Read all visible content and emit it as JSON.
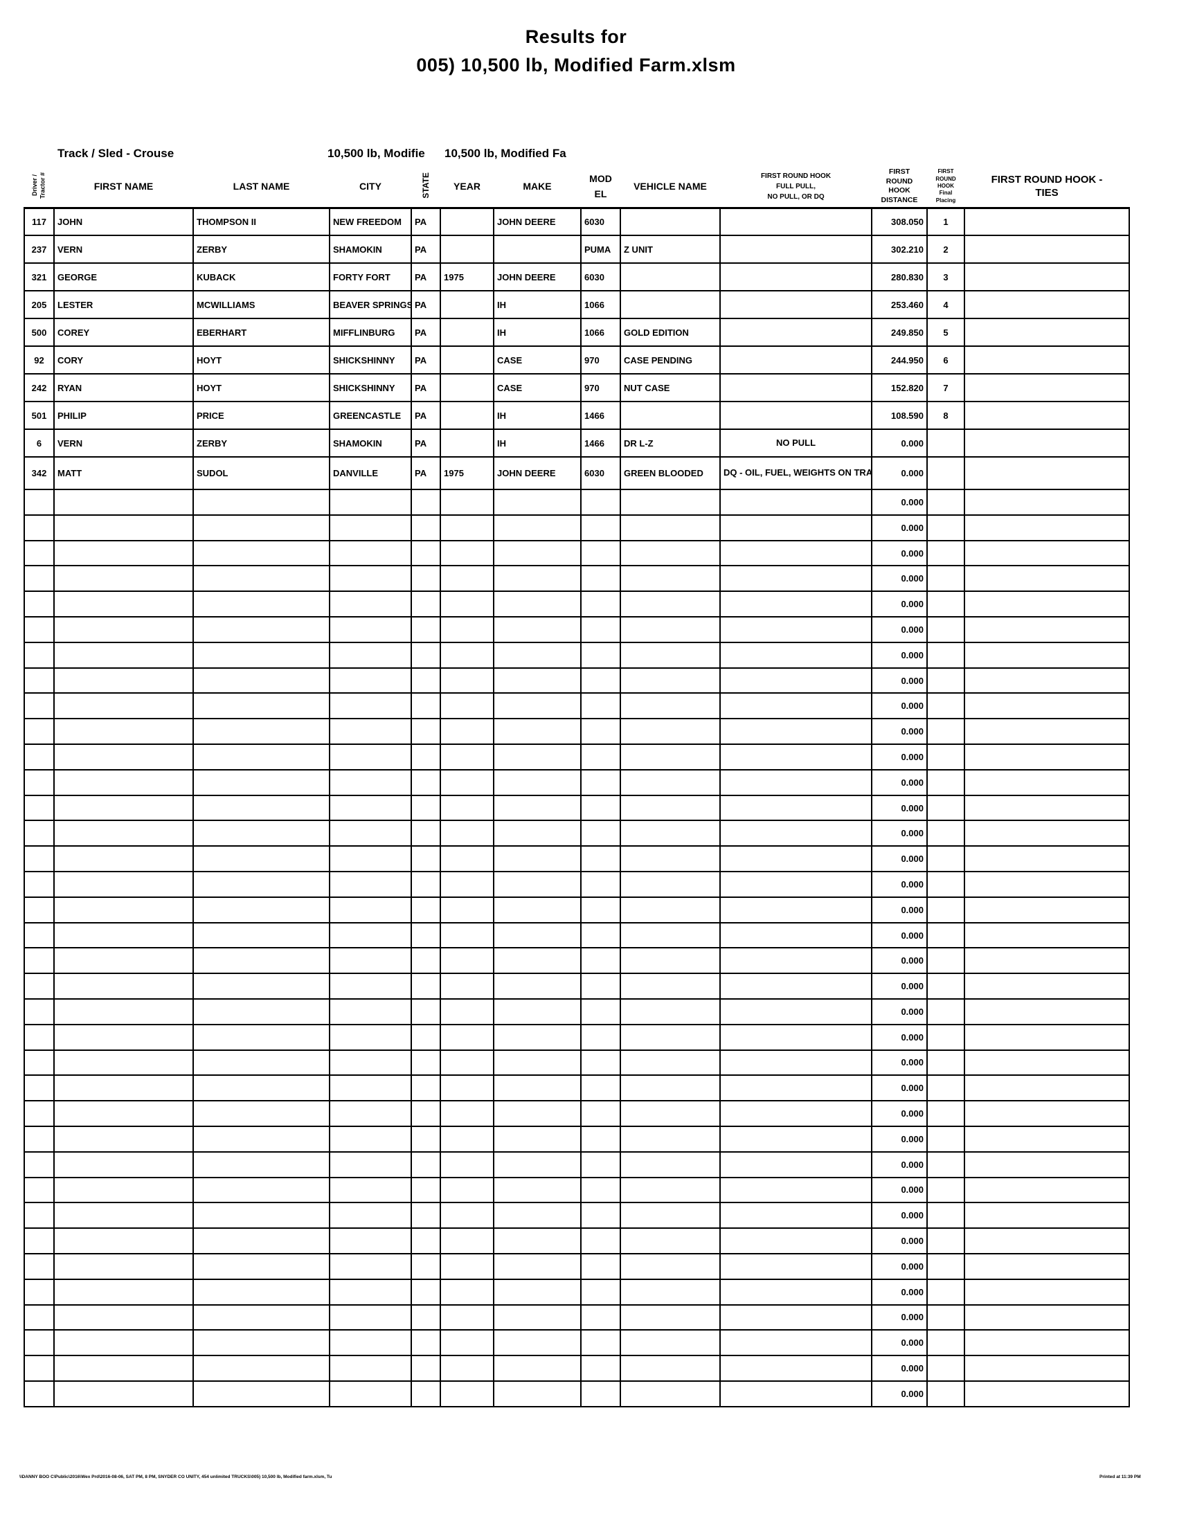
{
  "page": {
    "title_line1": "Results for",
    "title_line2": "005) 10,500 lb, Modified Farm.xlsm"
  },
  "meta": {
    "track_label": "Track / Sled - Crouse",
    "class_left": "10,500 lb, Modifie",
    "class_right": "10,500 lb, Modified Fa"
  },
  "table": {
    "headers": {
      "driver_tractor": "Driver /\nTractor #",
      "first_name": "FIRST NAME",
      "last_name": "LAST NAME",
      "city": "CITY",
      "state": "STATE",
      "year": "YEAR",
      "make": "MAKE",
      "model": "MOD EL",
      "vehicle_name": "VEHICLE NAME",
      "first_round_result": "FIRST ROUND HOOK\nFULL PULL,\nNO PULL, OR DQ",
      "first_round_distance": "FIRST\nROUND\nHOOK\nDISTANCE",
      "first_round_placing": "FIRST\nROUND\nHOOK\nFinal\nPlacing",
      "first_round_ties": "FIRST ROUND HOOK -\nTIES"
    },
    "rows": [
      {
        "num": "117",
        "first": "JOHN",
        "last": "THOMPSON II",
        "city": "NEW FREEDOM",
        "state": "PA",
        "year": "",
        "make": "JOHN DEERE",
        "model": "6030",
        "vehicle": "",
        "result": "",
        "distance": "308.050",
        "placing": "1",
        "ties": ""
      },
      {
        "num": "237",
        "first": "VERN",
        "last": "ZERBY",
        "city": "SHAMOKIN",
        "state": "PA",
        "year": "",
        "make": "",
        "model": "PUMA",
        "vehicle": "Z UNIT",
        "result": "",
        "distance": "302.210",
        "placing": "2",
        "ties": ""
      },
      {
        "num": "321",
        "first": "GEORGE",
        "last": "KUBACK",
        "city": "FORTY FORT",
        "state": "PA",
        "year": "1975",
        "make": "JOHN DEERE",
        "model": "6030",
        "vehicle": "",
        "result": "",
        "distance": "280.830",
        "placing": "3",
        "ties": ""
      },
      {
        "num": "205",
        "first": "LESTER",
        "last": "MCWILLIAMS",
        "city": "BEAVER SPRINGS",
        "state": "PA",
        "year": "",
        "make": "IH",
        "model": "1066",
        "vehicle": "",
        "result": "",
        "distance": "253.460",
        "placing": "4",
        "ties": ""
      },
      {
        "num": "500",
        "first": "COREY",
        "last": "EBERHART",
        "city": "MIFFLINBURG",
        "state": "PA",
        "year": "",
        "make": "IH",
        "model": "1066",
        "vehicle": "GOLD EDITION",
        "result": "",
        "distance": "249.850",
        "placing": "5",
        "ties": ""
      },
      {
        "num": "92",
        "first": "CORY",
        "last": "HOYT",
        "city": "SHICKSHINNY",
        "state": "PA",
        "year": "",
        "make": "CASE",
        "model": "970",
        "vehicle": "CASE PENDING",
        "result": "",
        "distance": "244.950",
        "placing": "6",
        "ties": ""
      },
      {
        "num": "242",
        "first": "RYAN",
        "last": "HOYT",
        "city": "SHICKSHINNY",
        "state": "PA",
        "year": "",
        "make": "CASE",
        "model": "970",
        "vehicle": "NUT CASE",
        "result": "",
        "distance": "152.820",
        "placing": "7",
        "ties": ""
      },
      {
        "num": "501",
        "first": "PHILIP",
        "last": "PRICE",
        "city": "GREENCASTLE",
        "state": "PA",
        "year": "",
        "make": "IH",
        "model": "1466",
        "vehicle": "",
        "result": "",
        "distance": "108.590",
        "placing": "8",
        "ties": ""
      },
      {
        "num": "6",
        "first": "VERN",
        "last": "ZERBY",
        "city": "SHAMOKIN",
        "state": "PA",
        "year": "",
        "make": "IH",
        "model": "1466",
        "vehicle": "DR L-Z",
        "result": "NO PULL",
        "distance": "0.000",
        "placing": "",
        "ties": ""
      },
      {
        "num": "342",
        "first": "MATT",
        "last": "SUDOL",
        "city": "DANVILLE",
        "state": "PA",
        "year": "1975",
        "make": "JOHN DEERE",
        "model": "6030",
        "vehicle": "GREEN BLOODED",
        "result": "DQ - OIL, FUEL, WEIGHTS ON TRACK",
        "distance": "0.000",
        "placing": "",
        "ties": ""
      }
    ],
    "empty_row_count": 36,
    "empty_row_distance": "0.000"
  },
  "footer": {
    "path": "\\\\DANNY BOO C\\Public\\2016\\Wex Prd\\2016-08-06, SAT PM, 8 PM, SNYDER CO UNITY, 454 unlimited TRUCKS\\005) 10,500 lb, Modified farm.xlsm,  Tu",
    "printed": "Printed at 11:39 PM"
  }
}
